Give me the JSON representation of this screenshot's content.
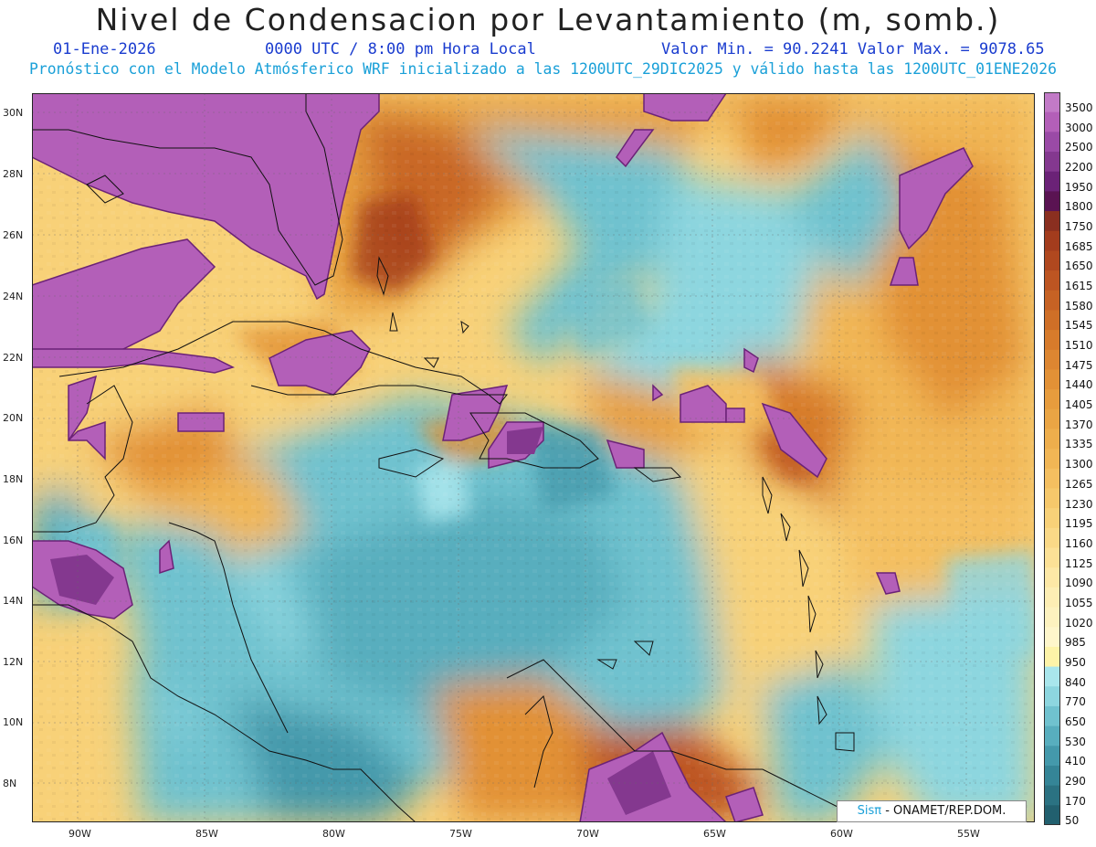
{
  "title": "Nivel de Condensacion por Levantamiento (m, somb.)",
  "date": "01-Ene-2026",
  "time": "0000 UTC / 8:00 pm Hora Local",
  "minmax": "Valor Min. = 90.2241  Valor Max. = 9078.65",
  "model_line": "Pronóstico con el Modelo Atmósferico WRF inicializado a las 1200UTC_29DIC2025 y válido hasta las  1200UTC_01ENE2026",
  "credit": {
    "logo": "Sisπ",
    "text": " - ONAMET/REP.DOM."
  },
  "lat_labels": [
    "30N",
    "28N",
    "26N",
    "24N",
    "22N",
    "20N",
    "18N",
    "16N",
    "14N",
    "12N",
    "10N",
    "8N"
  ],
  "lon_labels": [
    "90W",
    "85W",
    "80W",
    "75W",
    "70W",
    "65W",
    "60W",
    "55W"
  ],
  "colorbar": {
    "levels": [
      "3500",
      "3000",
      "2500",
      "2200",
      "1950",
      "1800",
      "1750",
      "1685",
      "1650",
      "1615",
      "1580",
      "1545",
      "1510",
      "1475",
      "1440",
      "1405",
      "1370",
      "1335",
      "1300",
      "1265",
      "1230",
      "1195",
      "1160",
      "1125",
      "1090",
      "1055",
      "1020",
      "985",
      "950",
      "840",
      "770",
      "650",
      "530",
      "410",
      "290",
      "170",
      "50"
    ],
    "colors": [
      "#c27ac7",
      "#b35fb8",
      "#9a4aa6",
      "#84388f",
      "#6b2277",
      "#5a1352",
      "#8a2f20",
      "#a33c1d",
      "#b0481f",
      "#bd5522",
      "#c66224",
      "#cf6f27",
      "#d77b2b",
      "#dd8631",
      "#e29136",
      "#e79c3d",
      "#eaa544",
      "#eeae4c",
      "#f1b655",
      "#f4bf60",
      "#f6c86b",
      "#f8d178",
      "#fad987",
      "#fce196",
      "#fde8a6",
      "#fdeeb4",
      "#fdf2bf",
      "#fef6cb",
      "#fdf3a8",
      "#a9e6ec",
      "#8dd6df",
      "#70c2cf",
      "#58aebe",
      "#4499ab",
      "#358597",
      "#2b7282",
      "#22606f"
    ]
  }
}
